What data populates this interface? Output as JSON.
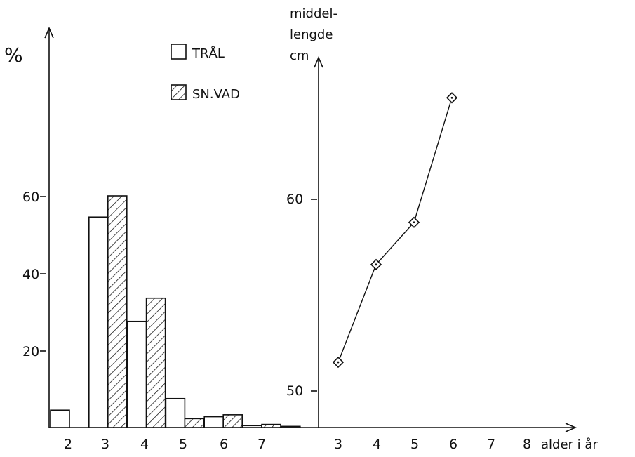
{
  "chart_data": [
    {
      "type": "bar",
      "ylabel": "%",
      "categories": [
        "2",
        "3",
        "4",
        "5",
        "6",
        "7"
      ],
      "yticks": [
        "20",
        "40",
        "60"
      ],
      "ylim": [
        0,
        100
      ],
      "legend_position": "top-center",
      "series": [
        {
          "name": "TRÅL",
          "pattern": "open",
          "values": [
            4.5,
            54.5,
            27.5,
            7.5,
            2.8,
            0.5
          ]
        },
        {
          "name": "SN.VAD",
          "pattern": "hatched",
          "values": [
            0,
            60,
            33.5,
            2.3,
            3.3,
            0.8
          ]
        }
      ],
      "extra_bars": [
        {
          "after_category": "7",
          "name": "TRÅL",
          "value": 0.3
        }
      ]
    },
    {
      "type": "line",
      "ylabel_lines": [
        "middel-",
        "lengde",
        "cm"
      ],
      "xlabel": "alder i år",
      "x": [
        "3",
        "4",
        "5",
        "6",
        "7",
        "8"
      ],
      "yticks": [
        "50",
        "60"
      ],
      "ylim": [
        47,
        74
      ],
      "marker": "diamond",
      "points": [
        {
          "x": 3,
          "y": 51.5
        },
        {
          "x": 4,
          "y": 56.6
        },
        {
          "x": 5,
          "y": 58.8
        },
        {
          "x": 6,
          "y": 65.3
        }
      ]
    }
  ]
}
